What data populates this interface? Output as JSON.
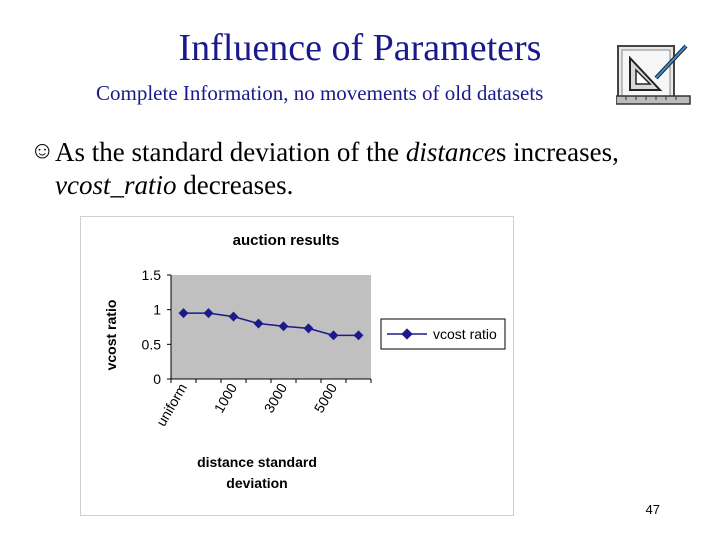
{
  "slide": {
    "title": "Influence of Parameters",
    "subtitle": "Complete Information, no movements of old datasets",
    "bullet": {
      "icon": "smiley-face-icon",
      "text_part1": "As the standard deviation of the ",
      "text_italic1": "distance",
      "text_part2": "s increases,",
      "text_italic2": "vcost_ratio",
      "text_part3": " decreases."
    },
    "logo_icon": "drafting-tools-icon",
    "page_number": "47"
  },
  "chart_data": {
    "type": "line",
    "title": "auction results",
    "xlabel": "distance standard deviation",
    "ylabel": "vcost ratio",
    "categories": [
      "uniform",
      "",
      "1000",
      "",
      "3000",
      "",
      "5000",
      ""
    ],
    "visible_tick_labels": [
      "uniform",
      "1000",
      "3000",
      "5000"
    ],
    "series": [
      {
        "name": "vcost ratio",
        "color": "#1a1a8c",
        "values": [
          0.95,
          0.95,
          0.9,
          0.8,
          0.76,
          0.73,
          0.63,
          0.63
        ]
      }
    ],
    "yticks": [
      "0",
      "0.5",
      "1",
      "1.5"
    ],
    "ylim": [
      0,
      1.5
    ],
    "grid": false,
    "legend_position": "right"
  }
}
